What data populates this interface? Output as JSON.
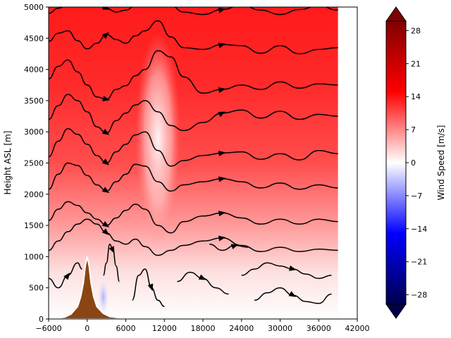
{
  "chart_data": {
    "type": "heatmap",
    "title": "",
    "xlabel": "",
    "ylabel": "Height ASL [m]",
    "xlim": [
      -6000,
      42000
    ],
    "ylim": [
      0,
      5000
    ],
    "x_ticks": [
      -6000,
      0,
      6000,
      12000,
      18000,
      24000,
      30000,
      36000,
      42000
    ],
    "x_tick_labels": [
      "−6000",
      "0",
      "6000",
      "12000",
      "18000",
      "24000",
      "30000",
      "36000",
      "42000"
    ],
    "y_ticks": [
      0,
      500,
      1000,
      1500,
      2000,
      2500,
      3000,
      3500,
      4000,
      4500,
      5000
    ],
    "y_tick_labels": [
      "0",
      "500",
      "1000",
      "1500",
      "2000",
      "2500",
      "3000",
      "3500",
      "4000",
      "4500",
      "5000"
    ],
    "field_x_range": [
      -6000,
      39000
    ],
    "grid": false,
    "colorbar": {
      "label": "Wind Speed [m/s]",
      "min": -30,
      "max": 30,
      "extend": "both",
      "colormap": "seismic",
      "ticks": [
        -28,
        -21,
        -14,
        -7,
        0,
        7,
        14,
        21,
        28
      ],
      "tick_labels": [
        "−28",
        "−21",
        "−14",
        "−7",
        "0",
        "7",
        "14",
        "21",
        "28"
      ]
    },
    "terrain": {
      "color": "#8b4513",
      "x": [
        -6000,
        -3500,
        -2500,
        -1500,
        -1000,
        -600,
        -300,
        0,
        300,
        600,
        1000,
        1500,
        2500,
        3500,
        5000,
        8000,
        12000,
        16000
      ],
      "height": [
        0,
        30,
        80,
        200,
        360,
        580,
        850,
        1000,
        850,
        580,
        360,
        200,
        90,
        40,
        20,
        10,
        5,
        0
      ]
    },
    "streamlines": [
      {
        "x": [
          -6000,
          -4500,
          -3000,
          -1500,
          0,
          1500,
          3000,
          4500,
          6000,
          7500,
          9000,
          11000,
          13000,
          15000,
          18000,
          21000,
          24000,
          27000,
          30000,
          33000,
          36000,
          39000
        ],
        "y": [
          4900,
          4980,
          5050,
          5080,
          5080,
          5050,
          4980,
          4920,
          4950,
          5020,
          5080,
          5100,
          5020,
          4920,
          4880,
          4960,
          5030,
          4950,
          4880,
          4960,
          5020,
          4950
        ]
      },
      {
        "x": [
          -6000,
          -4500,
          -3000,
          -1500,
          0,
          1500,
          3000,
          4500,
          6000,
          7500,
          9000,
          11000,
          13000,
          15000,
          18000,
          21000,
          24000,
          27000,
          30000,
          33000,
          36000,
          39000
        ],
        "y": [
          4450,
          4580,
          4620,
          4460,
          4330,
          4420,
          4560,
          4480,
          4420,
          4540,
          4620,
          4780,
          4520,
          4350,
          4320,
          4400,
          4380,
          4260,
          4380,
          4250,
          4320,
          4350
        ]
      },
      {
        "x": [
          -6000,
          -4500,
          -3000,
          -1500,
          0,
          1500,
          3000,
          4500,
          6000,
          7500,
          9000,
          11000,
          13000,
          15000,
          18000,
          21000,
          24000,
          27000,
          30000,
          33000,
          36000,
          39000
        ],
        "y": [
          3850,
          4050,
          4150,
          3960,
          3750,
          3560,
          3520,
          3680,
          3740,
          3900,
          4000,
          4300,
          4200,
          3880,
          3620,
          3680,
          3750,
          3680,
          3800,
          3700,
          3770,
          3750
        ]
      },
      {
        "x": [
          -6000,
          -4500,
          -3000,
          -1500,
          0,
          1500,
          3000,
          4500,
          6000,
          7500,
          9000,
          11000,
          13000,
          15000,
          18000,
          21000,
          24000,
          27000,
          30000,
          33000,
          36000,
          39000
        ],
        "y": [
          3200,
          3420,
          3600,
          3500,
          3320,
          3080,
          2980,
          3180,
          3300,
          3430,
          3500,
          3320,
          3100,
          3020,
          3150,
          3300,
          3350,
          3220,
          3330,
          3200,
          3280,
          3250
        ]
      },
      {
        "x": [
          -6000,
          -4500,
          -3000,
          -1500,
          0,
          1500,
          3000,
          4500,
          6000,
          7500,
          9000,
          11000,
          13000,
          15000,
          18000,
          21000,
          24000,
          27000,
          30000,
          33000,
          36000,
          39000
        ],
        "y": [
          2600,
          2850,
          3050,
          2960,
          2800,
          2620,
          2500,
          2680,
          2800,
          2950,
          3000,
          2700,
          2450,
          2540,
          2620,
          2660,
          2680,
          2560,
          2650,
          2550,
          2700,
          2650
        ]
      },
      {
        "x": [
          -6000,
          -4500,
          -3000,
          -1500,
          0,
          1500,
          3000,
          4500,
          6000,
          7500,
          9000,
          11000,
          13000,
          15000,
          18000,
          21000,
          24000,
          27000,
          30000,
          33000,
          36000,
          39000
        ],
        "y": [
          2080,
          2320,
          2500,
          2460,
          2300,
          2150,
          2050,
          2200,
          2320,
          2480,
          2450,
          2200,
          2050,
          2150,
          2200,
          2250,
          2200,
          2100,
          2180,
          2080,
          2150,
          2100
        ]
      },
      {
        "x": [
          -6000,
          -4500,
          -3000,
          -1500,
          0,
          1500,
          3000,
          4500,
          6000,
          7500,
          9000,
          11000,
          13000,
          15000,
          18000,
          21000,
          24000,
          27000,
          30000,
          33000,
          36000,
          39000
        ],
        "y": [
          1580,
          1760,
          1880,
          1820,
          1700,
          1600,
          1500,
          1620,
          1740,
          1840,
          1760,
          1500,
          1380,
          1560,
          1650,
          1700,
          1620,
          1520,
          1600,
          1520,
          1600,
          1560
        ]
      },
      {
        "x": [
          -6000,
          -4500,
          -3000,
          -1500,
          0,
          1500,
          3000,
          4500,
          6000,
          7500,
          9000,
          11000,
          13000,
          15000,
          18000,
          21000,
          24000,
          27000,
          30000,
          33000,
          36000,
          39000
        ],
        "y": [
          1100,
          1250,
          1400,
          1520,
          1600,
          1520,
          1380,
          1250,
          1200,
          1280,
          1160,
          1020,
          1100,
          1180,
          1250,
          1300,
          1180,
          1080,
          1150,
          1080,
          1120,
          1100
        ]
      },
      {
        "x": [
          -6000,
          -4500,
          -3000,
          -1500,
          -800
        ],
        "y": [
          650,
          500,
          700,
          900,
          800
        ]
      },
      {
        "x": [
          2500,
          3000,
          3500,
          4000,
          4500,
          5000
        ],
        "y": [
          700,
          900,
          1200,
          1100,
          850,
          600
        ]
      },
      {
        "x": [
          7000,
          8000,
          9000,
          10000,
          11000,
          12000
        ],
        "y": [
          300,
          700,
          800,
          500,
          300,
          200
        ]
      },
      {
        "x": [
          19000,
          21000,
          23000,
          25000
        ],
        "y": [
          1200,
          1100,
          1180,
          1150
        ]
      },
      {
        "x": [
          24000,
          26000,
          28000,
          30000,
          32000,
          34000,
          36000,
          38000
        ],
        "y": [
          700,
          800,
          900,
          850,
          800,
          720,
          650,
          700
        ]
      },
      {
        "x": [
          26000,
          28000,
          30000,
          32000,
          34000,
          36000,
          38000
        ],
        "y": [
          300,
          420,
          500,
          380,
          280,
          250,
          400
        ]
      },
      {
        "x": [
          14000,
          16000,
          18000,
          20000,
          22000
        ],
        "y": [
          600,
          750,
          650,
          500,
          400
        ]
      }
    ]
  }
}
